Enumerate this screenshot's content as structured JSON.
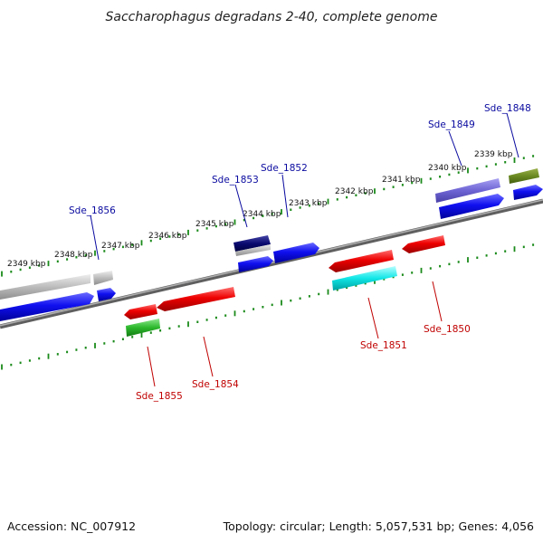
{
  "title": "Saccharophagus degradans 2-40, complete genome",
  "footer": {
    "accession": "Accession: NC_007912",
    "topology": "Topology: circular; Length: 5,057,531 bp; Genes: 4,056"
  },
  "colors": {
    "backbone": "#8a8a8a",
    "tick": "#1a8a1a",
    "label_top": "#0a0aa0",
    "label_bottom": "#c00000"
  },
  "ruler_labels": [
    "2349 kbp",
    "2348 kbp",
    "2347 kbp",
    "2346 kbp",
    "2345 kbp",
    "2344 kbp",
    "2343 kbp",
    "2342 kbp",
    "2341 kbp",
    "2340 kbp",
    "2339 kbp"
  ],
  "genes_top": [
    {
      "name": "Sde_1856"
    },
    {
      "name": "Sde_1853"
    },
    {
      "name": "Sde_1852"
    },
    {
      "name": "Sde_1849"
    },
    {
      "name": "Sde_1848"
    }
  ],
  "genes_bottom": [
    {
      "name": "Sde_1855"
    },
    {
      "name": "Sde_1854"
    },
    {
      "name": "Sde_1851"
    },
    {
      "name": "Sde_1850"
    }
  ]
}
